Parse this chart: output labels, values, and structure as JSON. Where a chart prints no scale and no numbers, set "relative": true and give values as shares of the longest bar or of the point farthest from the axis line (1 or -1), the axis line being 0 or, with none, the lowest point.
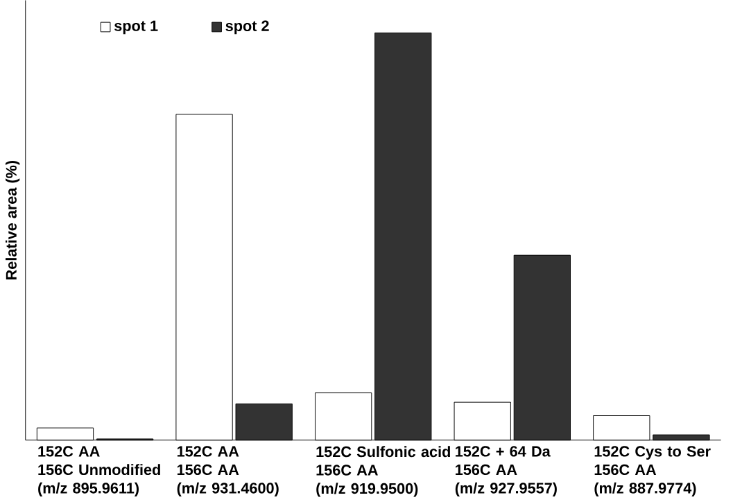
{
  "chart_data": {
    "type": "bar",
    "ylabel": "Relative area (%)",
    "relative": true,
    "legend": "top left",
    "categories": [
      "152C AA\n156C Unmodified\n(m/z 895.9611)",
      "152C AA\n156C AA\n(m/z 931.4600)",
      "152C Sulfonic acid\n156C AA\n(m/z 919.9500)",
      "152C + 64 Da\n156C AA\n(m/z 927.9557)",
      "152C Cys to Ser\n156C AA\n(m/z 887.9774)"
    ],
    "series": [
      {
        "name": "spot 1",
        "color": "#ffffff",
        "values": [
          0.03,
          0.8,
          0.116,
          0.093,
          0.06
        ]
      },
      {
        "name": "spot 2",
        "color": "#333333",
        "values": [
          0.003,
          0.089,
          1,
          0.454,
          0.013
        ]
      }
    ]
  }
}
